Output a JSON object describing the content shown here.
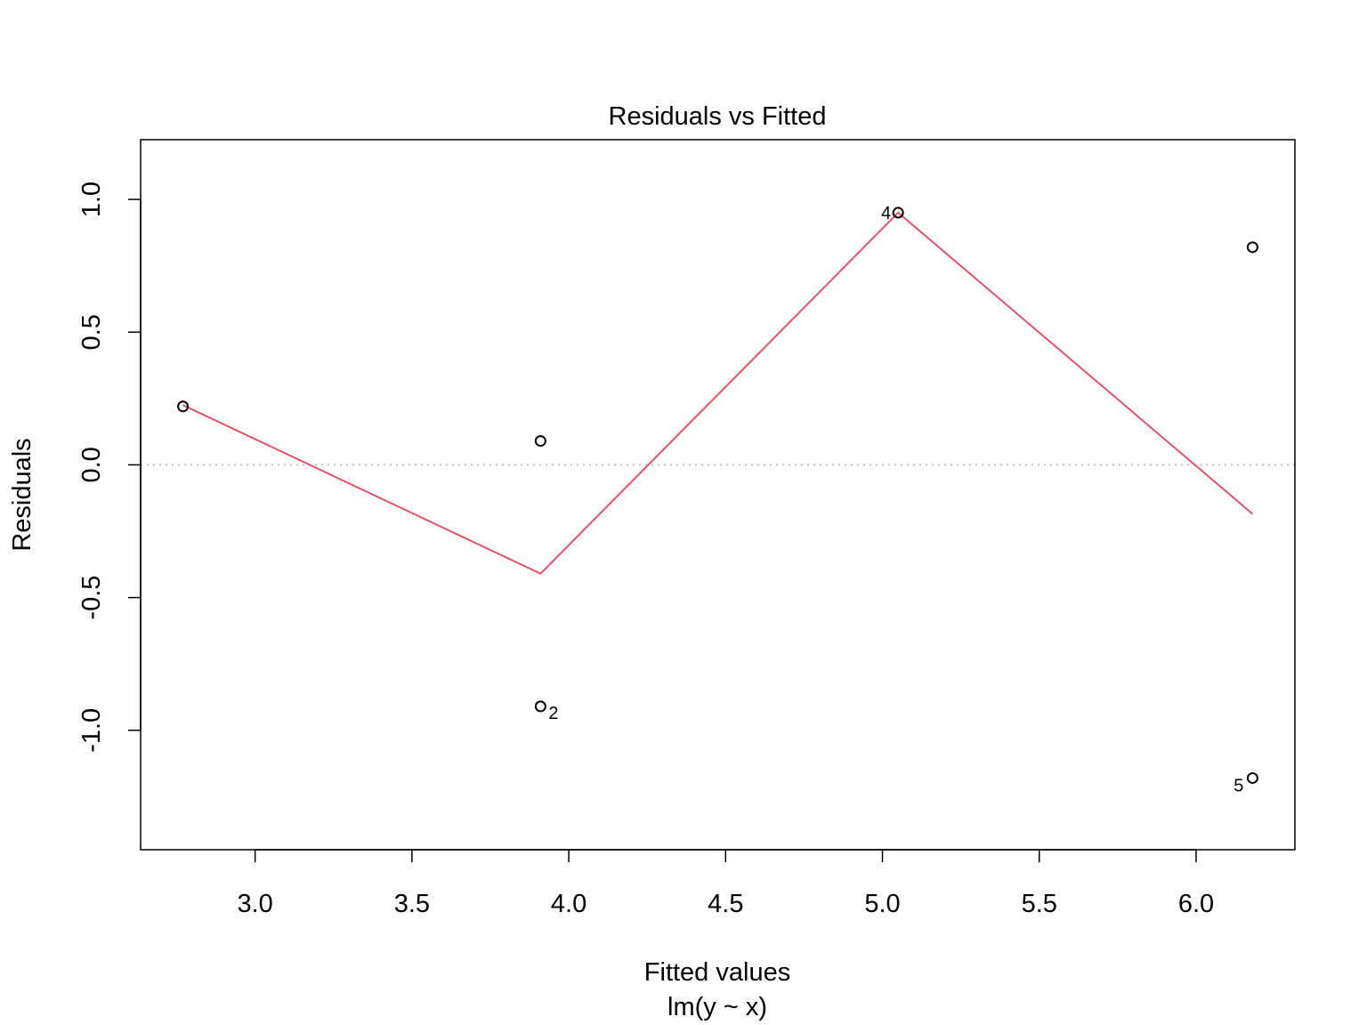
{
  "chart_data": {
    "type": "scatter",
    "title": "Residuals vs Fitted",
    "xlabel": "Fitted values",
    "xsublabel": "lm(y ~ x)",
    "ylabel": "Residuals",
    "xlim": [
      2.635,
      6.315
    ],
    "ylim": [
      -1.45,
      1.225
    ],
    "xticks": [
      3.0,
      3.5,
      4.0,
      4.5,
      5.0,
      5.5,
      6.0
    ],
    "xtick_labels": [
      "3.0",
      "3.5",
      "4.0",
      "4.5",
      "5.0",
      "5.5",
      "6.0"
    ],
    "yticks": [
      -1.0,
      -0.5,
      0.0,
      0.5,
      1.0
    ],
    "ytick_labels": [
      "-1.0",
      "-0.5",
      "0.0",
      "0.5",
      "1.0"
    ],
    "points": [
      {
        "x": 2.77,
        "y": 0.22,
        "label": ""
      },
      {
        "x": 3.91,
        "y": 0.09,
        "label": ""
      },
      {
        "x": 3.91,
        "y": -0.91,
        "label": "2"
      },
      {
        "x": 5.05,
        "y": 0.95,
        "label": "4"
      },
      {
        "x": 6.18,
        "y": 0.82,
        "label": ""
      },
      {
        "x": 6.18,
        "y": -1.18,
        "label": "5"
      }
    ],
    "smooth_line": {
      "color": "#DF536B",
      "x": [
        2.77,
        3.91,
        5.05,
        6.18
      ],
      "y": [
        0.225,
        -0.41,
        0.95,
        -0.185
      ]
    },
    "reference_line": {
      "y": 0,
      "style": "dotted",
      "color": "#BEBEBE"
    },
    "grid": false,
    "legend": "none"
  }
}
